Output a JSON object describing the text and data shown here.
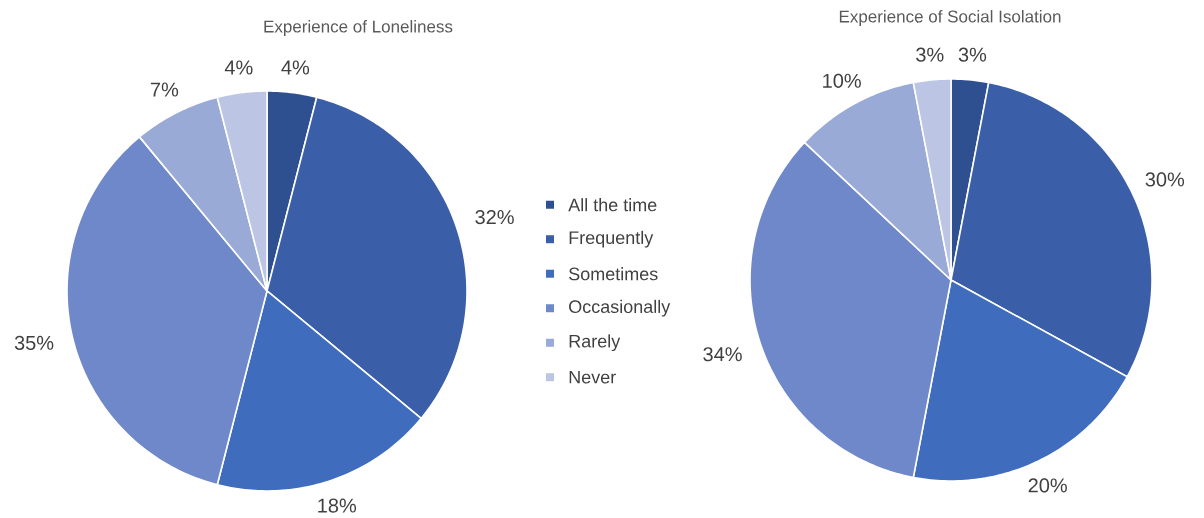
{
  "chart_data": [
    {
      "type": "pie",
      "title": "Experience of Loneliness",
      "categories": [
        "All the time",
        "Frequently",
        "Sometimes",
        "Occasionally",
        "Rarely",
        "Never"
      ],
      "values": [
        4,
        32,
        18,
        35,
        7,
        4
      ],
      "colors": [
        "#2f5090",
        "#3a5fa8",
        "#3f6cbd",
        "#6e88c9",
        "#9aaad6",
        "#bcc6e4"
      ],
      "value_labels": [
        "4%",
        "32%",
        "18%",
        "35%",
        "7%",
        "4%"
      ],
      "legend": "right"
    },
    {
      "type": "pie",
      "title": "Experience of Social Isolation",
      "categories": [
        null,
        null,
        null,
        null,
        null,
        null
      ],
      "values": [
        3,
        30,
        20,
        34,
        10,
        3
      ],
      "colors": [
        "#2f5090",
        "#3a5fa8",
        "#3f6cbd",
        "#6e88c9",
        "#9aaad6",
        "#bcc6e4"
      ],
      "value_labels": [
        "3%",
        "30%",
        "20%",
        "34%",
        "10%",
        "3%"
      ]
    }
  ]
}
